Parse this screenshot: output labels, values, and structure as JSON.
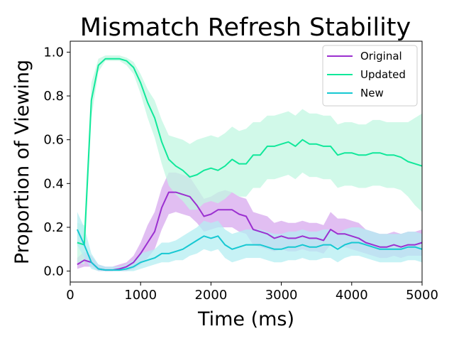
{
  "chart_data": {
    "type": "line",
    "title": "Mismatch Refresh Stability",
    "xlabel": "Time (ms)",
    "ylabel": "Proportion of Viewing",
    "xlim": [
      0,
      5000
    ],
    "ylim": [
      -0.05,
      1.05
    ],
    "xticks": [
      0,
      1000,
      2000,
      3000,
      4000,
      5000
    ],
    "xtick_labels": [
      "0",
      "1000",
      "2000",
      "3000",
      "4000",
      "5000"
    ],
    "yticks": [
      0.0,
      0.2,
      0.4,
      0.6,
      0.8,
      1.0
    ],
    "ytick_labels": [
      "0.0",
      "0.2",
      "0.4",
      "0.6",
      "0.8",
      "1.0"
    ],
    "grid": false,
    "legend_position": "top-right",
    "x": [
      100,
      200,
      300,
      400,
      500,
      600,
      700,
      800,
      900,
      1000,
      1100,
      1200,
      1300,
      1400,
      1500,
      1600,
      1700,
      1800,
      1900,
      2000,
      2100,
      2200,
      2300,
      2400,
      2500,
      2600,
      2700,
      2800,
      2900,
      3000,
      3100,
      3200,
      3300,
      3400,
      3500,
      3600,
      3700,
      3800,
      3900,
      4000,
      4100,
      4200,
      4300,
      4400,
      4500,
      4600,
      4700,
      4800,
      4900,
      5000
    ],
    "series": [
      {
        "name": "Original",
        "color": "#9b30d0",
        "band_color": "#d7a8ee",
        "values": [
          0.03,
          0.05,
          0.04,
          0.01,
          0.005,
          0.005,
          0.01,
          0.02,
          0.04,
          0.08,
          0.13,
          0.18,
          0.29,
          0.36,
          0.36,
          0.35,
          0.34,
          0.3,
          0.25,
          0.26,
          0.28,
          0.28,
          0.28,
          0.26,
          0.25,
          0.19,
          0.18,
          0.17,
          0.15,
          0.16,
          0.15,
          0.15,
          0.16,
          0.15,
          0.15,
          0.14,
          0.19,
          0.17,
          0.17,
          0.16,
          0.15,
          0.13,
          0.12,
          0.11,
          0.11,
          0.12,
          0.11,
          0.12,
          0.12,
          0.13
        ],
        "lower": [
          0.01,
          0.02,
          0.02,
          0.0,
          0.0,
          0.0,
          0.0,
          0.0,
          0.01,
          0.03,
          0.06,
          0.1,
          0.19,
          0.26,
          0.27,
          0.26,
          0.25,
          0.22,
          0.18,
          0.19,
          0.2,
          0.2,
          0.2,
          0.18,
          0.17,
          0.12,
          0.11,
          0.1,
          0.09,
          0.1,
          0.09,
          0.09,
          0.1,
          0.09,
          0.09,
          0.08,
          0.12,
          0.11,
          0.11,
          0.1,
          0.09,
          0.08,
          0.07,
          0.06,
          0.06,
          0.07,
          0.06,
          0.07,
          0.07,
          0.07
        ],
        "upper": [
          0.06,
          0.09,
          0.07,
          0.03,
          0.02,
          0.02,
          0.03,
          0.04,
          0.07,
          0.13,
          0.21,
          0.27,
          0.38,
          0.45,
          0.45,
          0.44,
          0.43,
          0.38,
          0.33,
          0.34,
          0.36,
          0.37,
          0.36,
          0.34,
          0.33,
          0.27,
          0.26,
          0.25,
          0.22,
          0.23,
          0.22,
          0.22,
          0.23,
          0.22,
          0.22,
          0.21,
          0.27,
          0.24,
          0.24,
          0.23,
          0.22,
          0.19,
          0.18,
          0.17,
          0.17,
          0.18,
          0.17,
          0.18,
          0.18,
          0.19
        ]
      },
      {
        "name": "Updated",
        "color": "#10e89a",
        "band_color": "#c2f7e2",
        "values": [
          0.13,
          0.12,
          0.78,
          0.94,
          0.97,
          0.97,
          0.97,
          0.96,
          0.93,
          0.86,
          0.77,
          0.7,
          0.59,
          0.51,
          0.48,
          0.46,
          0.43,
          0.44,
          0.46,
          0.47,
          0.46,
          0.48,
          0.51,
          0.49,
          0.49,
          0.53,
          0.53,
          0.57,
          0.57,
          0.58,
          0.59,
          0.57,
          0.6,
          0.58,
          0.58,
          0.57,
          0.57,
          0.53,
          0.54,
          0.54,
          0.53,
          0.53,
          0.54,
          0.54,
          0.53,
          0.53,
          0.52,
          0.5,
          0.49,
          0.48
        ],
        "lower": [
          0.04,
          0.03,
          0.7,
          0.91,
          0.96,
          0.96,
          0.96,
          0.94,
          0.9,
          0.81,
          0.7,
          0.61,
          0.49,
          0.39,
          0.35,
          0.32,
          0.28,
          0.28,
          0.31,
          0.32,
          0.31,
          0.33,
          0.36,
          0.34,
          0.34,
          0.38,
          0.38,
          0.42,
          0.42,
          0.43,
          0.44,
          0.42,
          0.45,
          0.43,
          0.43,
          0.42,
          0.42,
          0.38,
          0.39,
          0.39,
          0.38,
          0.38,
          0.39,
          0.39,
          0.38,
          0.38,
          0.37,
          0.34,
          0.3,
          0.27
        ],
        "upper": [
          0.22,
          0.21,
          0.86,
          0.97,
          0.985,
          0.985,
          0.985,
          0.975,
          0.955,
          0.9,
          0.83,
          0.78,
          0.69,
          0.62,
          0.61,
          0.6,
          0.58,
          0.6,
          0.61,
          0.62,
          0.61,
          0.63,
          0.66,
          0.64,
          0.65,
          0.68,
          0.68,
          0.71,
          0.71,
          0.72,
          0.73,
          0.71,
          0.74,
          0.72,
          0.72,
          0.71,
          0.71,
          0.67,
          0.68,
          0.68,
          0.67,
          0.67,
          0.69,
          0.69,
          0.68,
          0.68,
          0.68,
          0.68,
          0.7,
          0.72
        ]
      },
      {
        "name": "New",
        "color": "#16c8d2",
        "band_color": "#b4eef1",
        "values": [
          0.19,
          0.12,
          0.04,
          0.01,
          0.005,
          0.005,
          0.005,
          0.01,
          0.02,
          0.04,
          0.05,
          0.06,
          0.08,
          0.08,
          0.09,
          0.1,
          0.12,
          0.14,
          0.16,
          0.15,
          0.16,
          0.12,
          0.1,
          0.11,
          0.12,
          0.12,
          0.12,
          0.11,
          0.1,
          0.1,
          0.11,
          0.11,
          0.12,
          0.11,
          0.11,
          0.12,
          0.12,
          0.1,
          0.12,
          0.13,
          0.13,
          0.12,
          0.11,
          0.1,
          0.1,
          0.1,
          0.1,
          0.11,
          0.11,
          0.1
        ],
        "lower": [
          0.12,
          0.06,
          0.01,
          0.0,
          0.0,
          0.0,
          0.0,
          0.0,
          0.0,
          0.01,
          0.02,
          0.03,
          0.04,
          0.04,
          0.05,
          0.05,
          0.07,
          0.08,
          0.1,
          0.09,
          0.1,
          0.06,
          0.04,
          0.05,
          0.06,
          0.06,
          0.06,
          0.05,
          0.04,
          0.04,
          0.05,
          0.05,
          0.06,
          0.05,
          0.05,
          0.06,
          0.06,
          0.04,
          0.06,
          0.07,
          0.07,
          0.06,
          0.05,
          0.04,
          0.04,
          0.04,
          0.04,
          0.05,
          0.05,
          0.04
        ],
        "upper": [
          0.27,
          0.2,
          0.08,
          0.03,
          0.02,
          0.02,
          0.02,
          0.03,
          0.05,
          0.08,
          0.09,
          0.1,
          0.13,
          0.13,
          0.14,
          0.16,
          0.18,
          0.2,
          0.23,
          0.22,
          0.23,
          0.19,
          0.17,
          0.18,
          0.19,
          0.19,
          0.19,
          0.18,
          0.17,
          0.17,
          0.18,
          0.18,
          0.19,
          0.18,
          0.18,
          0.19,
          0.19,
          0.17,
          0.19,
          0.2,
          0.2,
          0.19,
          0.18,
          0.17,
          0.17,
          0.17,
          0.17,
          0.18,
          0.18,
          0.17
        ]
      }
    ]
  }
}
